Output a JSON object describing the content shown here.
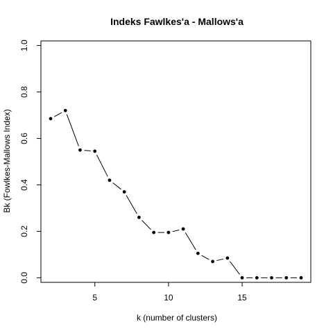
{
  "chart_data": {
    "type": "line",
    "title": "Indeks Fawlkes'a - Mallows'a",
    "xlabel": "k (number of clusters)",
    "ylabel": "Bk (Fowlkes-Mallows Index)",
    "xlim": [
      2,
      19
    ],
    "ylim": [
      0,
      1
    ],
    "x_ticks": [
      5,
      10,
      15
    ],
    "y_ticks": [
      0.0,
      0.2,
      0.4,
      0.6,
      0.8,
      1.0
    ],
    "x_tick_labels": [
      "5",
      "10",
      "15"
    ],
    "y_tick_labels": [
      "0.0",
      "0.2",
      "0.4",
      "0.6",
      "0.8",
      "1.0"
    ],
    "line_style": "solid with point markers",
    "grid": false,
    "series": [
      {
        "x": [
          2,
          3,
          4,
          5,
          6,
          7,
          8,
          9,
          10,
          11,
          12,
          13,
          14,
          15,
          16,
          17,
          18,
          19
        ],
        "values": [
          0.685,
          0.72,
          0.55,
          0.545,
          0.42,
          0.37,
          0.26,
          0.195,
          0.195,
          0.21,
          0.105,
          0.07,
          0.085,
          0.0,
          0.0,
          0.0,
          0.0,
          0.0
        ]
      }
    ]
  }
}
